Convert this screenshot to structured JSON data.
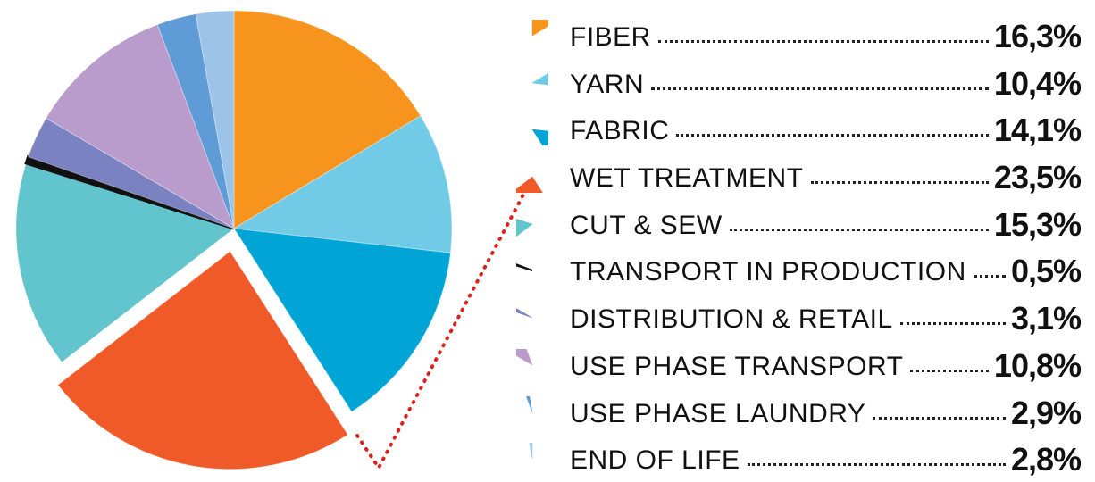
{
  "chart_data": {
    "type": "pie",
    "exploded_slice": "WET TREATMENT",
    "legend_position": "right",
    "slices": [
      {
        "label": "FIBER",
        "value": 16.3,
        "display": "16,3%",
        "color": "#f7941d"
      },
      {
        "label": "YARN",
        "value": 10.4,
        "display": "10,4%",
        "color": "#72cbe6"
      },
      {
        "label": "FABRIC",
        "value": 14.1,
        "display": "14,1%",
        "color": "#00a5d5"
      },
      {
        "label": "WET TREATMENT",
        "value": 23.5,
        "display": "23,5%",
        "color": "#f05a28"
      },
      {
        "label": "CUT & SEW",
        "value": 15.3,
        "display": "15,3%",
        "color": "#62c4cc"
      },
      {
        "label": "TRANSPORT IN PRODUCTION",
        "value": 0.5,
        "display": "0,5%",
        "color": "#111111"
      },
      {
        "label": "DISTRIBUTION & RETAIL",
        "value": 3.1,
        "display": "3,1%",
        "color": "#7b82c2"
      },
      {
        "label": "USE PHASE TRANSPORT",
        "value": 10.8,
        "display": "10,8%",
        "color": "#b99ccb"
      },
      {
        "label": "USE PHASE LAUNDRY",
        "value": 2.9,
        "display": "2,9%",
        "color": "#5f9bd6"
      },
      {
        "label": "END OF LIFE",
        "value": 2.8,
        "display": "2,8%",
        "color": "#9cc3e8"
      }
    ]
  }
}
